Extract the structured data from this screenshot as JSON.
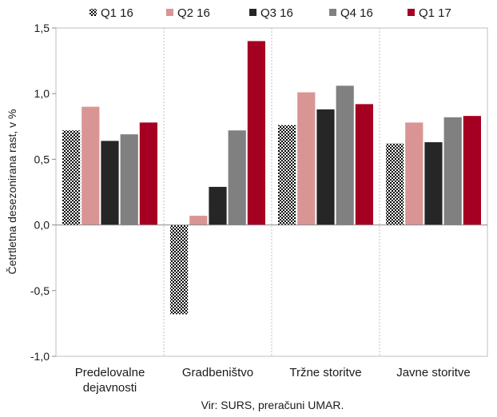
{
  "chart_data": {
    "type": "bar",
    "ylabel": "Četrtletna desezonirana rast, v %",
    "source": "Vir: SURS, preračuni UMAR.",
    "ylim": [
      -1.0,
      1.5
    ],
    "yticks": [
      "1,5",
      "1,0",
      "0,5",
      "0,0",
      "-0,5",
      "-1,0"
    ],
    "ytick_values": [
      1.5,
      1.0,
      0.5,
      0.0,
      -0.5,
      -1.0
    ],
    "categories": [
      [
        "Predelovalne",
        "dejavnosti"
      ],
      [
        "Gradbeništvo"
      ],
      [
        "Tržne storitve"
      ],
      [
        "Javne storitve"
      ]
    ],
    "legend_position": "top",
    "series": [
      {
        "name": "Q1 16",
        "color": "#000000",
        "pattern": "checker",
        "values": [
          0.72,
          -0.68,
          0.76,
          0.62
        ]
      },
      {
        "name": "Q2 16",
        "color": "#d99594",
        "values": [
          0.9,
          0.07,
          1.01,
          0.78
        ]
      },
      {
        "name": "Q3 16",
        "color": "#262626",
        "values": [
          0.64,
          0.29,
          0.88,
          0.63
        ]
      },
      {
        "name": "Q4 16",
        "color": "#808080",
        "values": [
          0.69,
          0.72,
          1.06,
          0.82
        ]
      },
      {
        "name": "Q1 17",
        "color": "#a50021",
        "values": [
          0.78,
          1.4,
          0.92,
          0.83
        ]
      }
    ],
    "grid": false
  }
}
